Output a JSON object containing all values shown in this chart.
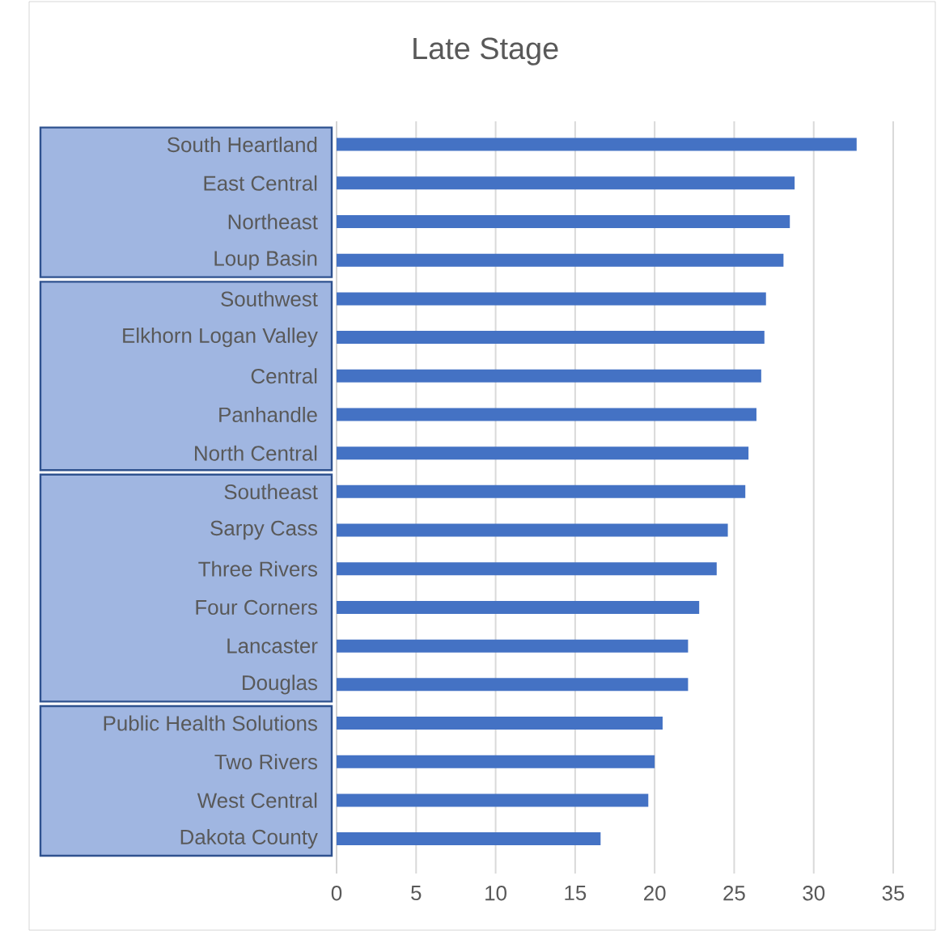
{
  "chart_data": {
    "type": "bar",
    "orientation": "horizontal",
    "title": "Late Stage",
    "categories": [
      "South Heartland",
      "East Central",
      "Northeast",
      "Loup Basin",
      "Southwest",
      "Elkhorn Logan Valley",
      "Central",
      "Panhandle",
      "North Central",
      "Southeast",
      "Sarpy Cass",
      "Three Rivers",
      "Four Corners",
      "Lancaster",
      "Douglas",
      "Public Health Solutions",
      "Two Rivers",
      "West Central",
      "Dakota County"
    ],
    "values": [
      32.7,
      28.8,
      28.5,
      28.1,
      27.0,
      26.9,
      26.7,
      26.4,
      25.9,
      25.7,
      24.6,
      23.9,
      22.8,
      22.1,
      22.1,
      20.5,
      20.0,
      19.6,
      16.6
    ],
    "color": "#4472c4",
    "xlim": [
      0,
      35
    ],
    "xticks": [
      0,
      5,
      10,
      15,
      20,
      25,
      30,
      35
    ],
    "grid": "x"
  }
}
